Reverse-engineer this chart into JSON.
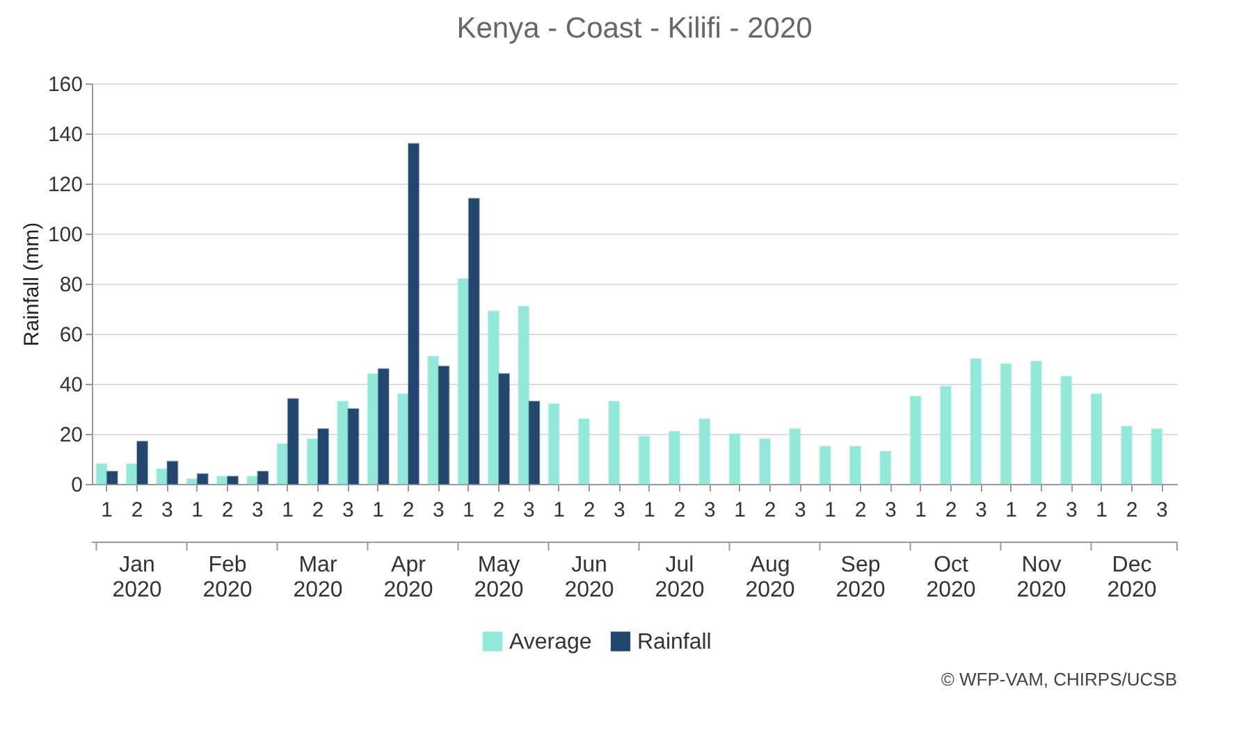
{
  "chart_data": {
    "type": "bar",
    "title": "Kenya - Coast - Kilifi - 2020",
    "ylabel": "Rainfall (mm)",
    "categories": [
      "1",
      "2",
      "3",
      "1",
      "2",
      "3",
      "1",
      "2",
      "3",
      "1",
      "2",
      "3",
      "1",
      "2",
      "3",
      "1",
      "2",
      "3",
      "1",
      "2",
      "3",
      "1",
      "2",
      "3",
      "1",
      "2",
      "3",
      "1",
      "2",
      "3",
      "1",
      "2",
      "3",
      "1",
      "2",
      "3"
    ],
    "series": [
      {
        "name": "Average",
        "color": "#93e9d9",
        "values": [
          8,
          8,
          6,
          2,
          3,
          3,
          16,
          18,
          33,
          44,
          36,
          51,
          82,
          69,
          71,
          32,
          26,
          33,
          19,
          21,
          26,
          20,
          18,
          22,
          15,
          15,
          13,
          35,
          39,
          50,
          48,
          49,
          43,
          36,
          23,
          22
        ]
      },
      {
        "name": "Rainfall",
        "color": "#24476f",
        "values": [
          5,
          17,
          9,
          4,
          3,
          5,
          34,
          22,
          30,
          46,
          136,
          47,
          114,
          44,
          33,
          null,
          null,
          null,
          null,
          null,
          null,
          null,
          null,
          null,
          null,
          null,
          null,
          null,
          null,
          null,
          null,
          null,
          null,
          null,
          null,
          null
        ]
      }
    ],
    "ylim": [
      0,
      160
    ],
    "yticks": [
      0,
      20,
      40,
      60,
      80,
      100,
      120,
      140,
      160
    ],
    "grid": "y",
    "legend": "bottom",
    "annotations": [
      "Jan 2020",
      "Feb 2020",
      "Mar 2020",
      "Apr 2020",
      "May 2020",
      "Jun 2020",
      "Jul 2020",
      "Aug 2020",
      "Sep 2020",
      "Oct 2020",
      "Nov 2020",
      "Dec 2020",
      "© WFP-VAM, CHIRPS/UCSB"
    ]
  }
}
